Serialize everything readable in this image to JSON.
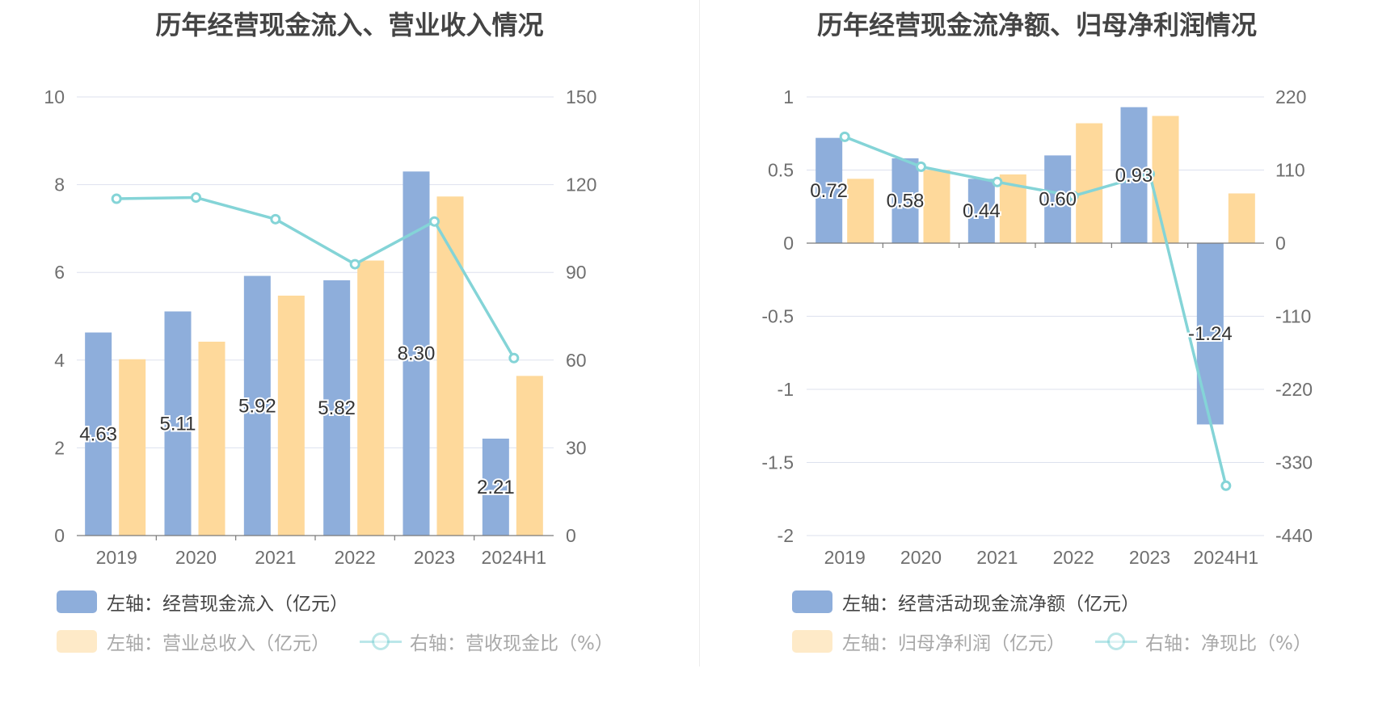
{
  "colors": {
    "bar_primary": "#8eaedb",
    "bar_secondary": "#fed99b",
    "line": "#84d4d7",
    "grid": "#dde1ee",
    "axis_text": "#6f6f6f",
    "title_text": "#444444",
    "legend_text": "#444444",
    "legend_text_faded": "#a8a8a8"
  },
  "chart_data": [
    {
      "type": "bar",
      "title": "历年经营现金流入、营业收入情况",
      "categories": [
        "2019",
        "2020",
        "2021",
        "2022",
        "2023",
        "2024H1"
      ],
      "left_axis": {
        "min": 0,
        "max": 10,
        "ticks": [
          "0",
          "2",
          "4",
          "6",
          "8",
          "10"
        ]
      },
      "right_axis": {
        "min": 0,
        "max": 150,
        "ticks": [
          "0",
          "30",
          "60",
          "90",
          "120",
          "150"
        ]
      },
      "series": [
        {
          "name": "经营现金流入",
          "axis": "left",
          "kind": "bar",
          "color_key": "bar_primary",
          "values": [
            4.63,
            5.11,
            5.92,
            5.82,
            8.3,
            2.21
          ],
          "labels": [
            "4.63",
            "5.11",
            "5.92",
            "5.82",
            "8.30",
            "2.21"
          ]
        },
        {
          "name": "营业总收入",
          "axis": "left",
          "kind": "bar",
          "color_key": "bar_secondary",
          "values": [
            4.02,
            4.42,
            5.47,
            6.27,
            7.73,
            3.64
          ]
        },
        {
          "name": "营收现金比",
          "axis": "right",
          "kind": "line",
          "color_key": "line",
          "values": [
            115.2,
            115.6,
            108.2,
            92.8,
            107.4,
            60.7
          ]
        }
      ],
      "legend": [
        {
          "type": "box",
          "color_key": "bar_primary",
          "text": "左轴：经营现金流入（亿元）",
          "faded": false
        },
        {
          "type": "box",
          "color_key": "bar_secondary",
          "text": "左轴：营业总收入（亿元）",
          "faded": true
        },
        {
          "type": "line",
          "color_key": "line",
          "text": "右轴：营收现金比（%）",
          "faded": true
        }
      ]
    },
    {
      "type": "bar",
      "title": "历年经营现金流净额、归母净利润情况",
      "categories": [
        "2019",
        "2020",
        "2021",
        "2022",
        "2023",
        "2024H1"
      ],
      "left_axis": {
        "min": -2,
        "max": 1,
        "ticks": [
          "-2",
          "-1.5",
          "-1",
          "-0.5",
          "0",
          "0.5",
          "1"
        ]
      },
      "right_axis": {
        "min": -440,
        "max": 220,
        "ticks": [
          "-440",
          "-330",
          "-220",
          "-110",
          "0",
          "110",
          "220"
        ]
      },
      "series": [
        {
          "name": "经营活动现金流净额",
          "axis": "left",
          "kind": "bar",
          "color_key": "bar_primary",
          "values": [
            0.72,
            0.58,
            0.44,
            0.6,
            0.93,
            -1.24
          ],
          "labels": [
            "0.72",
            "0.58",
            "0.44",
            "0.60",
            "0.93",
            "-1.24"
          ]
        },
        {
          "name": "归母净利润",
          "axis": "left",
          "kind": "bar",
          "color_key": "bar_secondary",
          "values": [
            0.44,
            0.5,
            0.47,
            0.82,
            0.87,
            0.34
          ]
        },
        {
          "name": "净现比",
          "axis": "right",
          "kind": "line",
          "color_key": "line",
          "values": [
            160,
            115,
            92,
            71,
            104,
            -365
          ]
        }
      ],
      "legend": [
        {
          "type": "box",
          "color_key": "bar_primary",
          "text": "左轴：经营活动现金流净额（亿元）",
          "faded": false
        },
        {
          "type": "box",
          "color_key": "bar_secondary",
          "text": "左轴：归母净利润（亿元）",
          "faded": true
        },
        {
          "type": "line",
          "color_key": "line",
          "text": "右轴：净现比（%）",
          "faded": true
        }
      ]
    }
  ]
}
